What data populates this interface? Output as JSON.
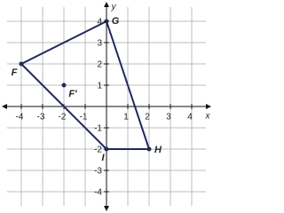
{
  "chart_data": {
    "type": "polygon",
    "xlabel": "x",
    "ylabel": "y",
    "xlim": [
      -5,
      5
    ],
    "ylim": [
      -5,
      5
    ],
    "xticks": [
      -4,
      -3,
      -2,
      -1,
      1,
      2,
      3,
      4
    ],
    "yticks": [
      -4,
      -3,
      -2,
      -1,
      1,
      2,
      3,
      4
    ],
    "grid": true,
    "color": "#1f2a5a",
    "shape": {
      "labels": [
        "F",
        "G",
        "H",
        "I"
      ],
      "x": [
        -4,
        0,
        2,
        0
      ],
      "y": [
        2,
        4,
        -2,
        -2
      ]
    },
    "point": {
      "label": "F'",
      "x": -2,
      "y": 1
    }
  }
}
